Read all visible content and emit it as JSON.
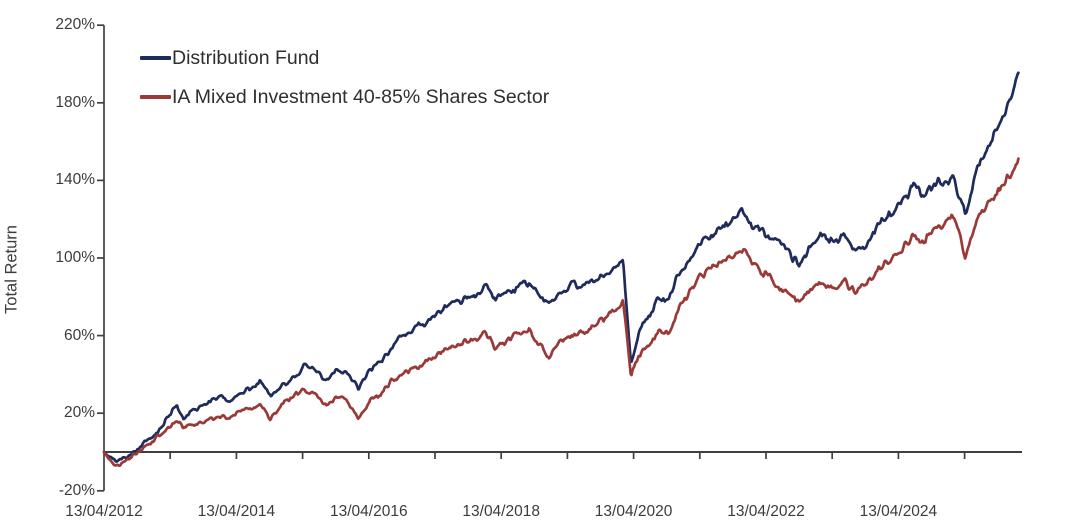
{
  "chart_data": {
    "type": "line",
    "title": "",
    "xlabel": "",
    "ylabel": "Total Return",
    "grid": false,
    "legend_position": "top-left-inside",
    "background_color": "#ffffff",
    "axis_color": "#3f3f3f",
    "text_color": "#3c3c3c",
    "y_domain": [
      -20,
      220
    ],
    "y_tick_values": [
      220,
      180,
      140,
      100,
      60,
      20,
      -20
    ],
    "y_tick_labels": [
      "220%",
      "180%",
      "140%",
      "100%",
      "60%",
      "20%",
      "-20%"
    ],
    "x_domain_years": [
      2012.28,
      2026.1
    ],
    "x_minor_tick_years": [
      2013.28,
      2014.28,
      2015.28,
      2016.28,
      2017.28,
      2018.28,
      2019.28,
      2020.28,
      2021.28,
      2022.28,
      2023.28,
      2024.28,
      2025.28
    ],
    "x_label_years": [
      2012.28,
      2014.28,
      2016.28,
      2018.28,
      2020.28,
      2022.28,
      2024.28
    ],
    "x_tick_labels": [
      "13/04/2012",
      "13/04/2014",
      "13/04/2016",
      "13/04/2018",
      "13/04/2020",
      "13/04/2022",
      "13/04/2024"
    ],
    "series": [
      {
        "name": "Distribution Fund",
        "color": "#1F2C5B",
        "points": [
          [
            2012.28,
            0
          ],
          [
            2012.36,
            -2.5
          ],
          [
            2012.46,
            -4.8
          ],
          [
            2012.6,
            -2.5
          ],
          [
            2012.72,
            -0.5
          ],
          [
            2012.82,
            3
          ],
          [
            2012.95,
            6.5
          ],
          [
            2013.1,
            11
          ],
          [
            2013.25,
            18
          ],
          [
            2013.38,
            24.5
          ],
          [
            2013.48,
            17.5
          ],
          [
            2013.6,
            21
          ],
          [
            2013.75,
            23.5
          ],
          [
            2013.9,
            26
          ],
          [
            2014.05,
            28
          ],
          [
            2014.18,
            26.5
          ],
          [
            2014.32,
            30.5
          ],
          [
            2014.5,
            33
          ],
          [
            2014.64,
            35.5
          ],
          [
            2014.8,
            29.5
          ],
          [
            2014.95,
            34
          ],
          [
            2015.1,
            37
          ],
          [
            2015.3,
            44
          ],
          [
            2015.45,
            42
          ],
          [
            2015.64,
            37
          ],
          [
            2015.8,
            41.5
          ],
          [
            2015.95,
            40
          ],
          [
            2016.12,
            33.5
          ],
          [
            2016.3,
            42
          ],
          [
            2016.45,
            45.5
          ],
          [
            2016.6,
            52
          ],
          [
            2016.76,
            60
          ],
          [
            2016.92,
            63
          ],
          [
            2017.1,
            66
          ],
          [
            2017.3,
            70.5
          ],
          [
            2017.52,
            76
          ],
          [
            2017.72,
            78.5
          ],
          [
            2017.9,
            81.5
          ],
          [
            2018.05,
            85.5
          ],
          [
            2018.18,
            78
          ],
          [
            2018.36,
            81.5
          ],
          [
            2018.55,
            85
          ],
          [
            2018.7,
            87.5
          ],
          [
            2018.86,
            81
          ],
          [
            2019.0,
            77
          ],
          [
            2019.16,
            83
          ],
          [
            2019.36,
            86.5
          ],
          [
            2019.56,
            87
          ],
          [
            2019.76,
            89
          ],
          [
            2019.96,
            93
          ],
          [
            2020.12,
            100
          ],
          [
            2020.24,
            45
          ],
          [
            2020.36,
            62
          ],
          [
            2020.52,
            70
          ],
          [
            2020.66,
            80
          ],
          [
            2020.8,
            78
          ],
          [
            2020.92,
            88
          ],
          [
            2021.06,
            96
          ],
          [
            2021.28,
            107
          ],
          [
            2021.5,
            112
          ],
          [
            2021.72,
            118
          ],
          [
            2021.9,
            124
          ],
          [
            2022.06,
            118
          ],
          [
            2022.22,
            113
          ],
          [
            2022.4,
            111
          ],
          [
            2022.56,
            105
          ],
          [
            2022.78,
            96
          ],
          [
            2022.96,
            106
          ],
          [
            2023.12,
            112
          ],
          [
            2023.3,
            108
          ],
          [
            2023.46,
            112
          ],
          [
            2023.63,
            103
          ],
          [
            2023.8,
            108
          ],
          [
            2023.96,
            116
          ],
          [
            2024.12,
            121
          ],
          [
            2024.3,
            127
          ],
          [
            2024.5,
            136
          ],
          [
            2024.66,
            133
          ],
          [
            2024.82,
            139
          ],
          [
            2024.96,
            138
          ],
          [
            2025.1,
            141
          ],
          [
            2025.22,
            131
          ],
          [
            2025.29,
            122
          ],
          [
            2025.42,
            141
          ],
          [
            2025.58,
            154
          ],
          [
            2025.72,
            164
          ],
          [
            2025.88,
            174
          ],
          [
            2026.0,
            184
          ],
          [
            2026.1,
            195
          ]
        ]
      },
      {
        "name": "IA Mixed Investment 40-85% Shares Sector",
        "color": "#9A3A38",
        "points": [
          [
            2012.28,
            0
          ],
          [
            2012.36,
            -4
          ],
          [
            2012.46,
            -7
          ],
          [
            2012.6,
            -5
          ],
          [
            2012.72,
            -2
          ],
          [
            2012.82,
            1
          ],
          [
            2012.95,
            4
          ],
          [
            2013.1,
            8
          ],
          [
            2013.25,
            13
          ],
          [
            2013.38,
            16.5
          ],
          [
            2013.48,
            11.5
          ],
          [
            2013.6,
            14
          ],
          [
            2013.75,
            15.5
          ],
          [
            2013.9,
            17.5
          ],
          [
            2014.05,
            19
          ],
          [
            2014.18,
            16.5
          ],
          [
            2014.32,
            20.5
          ],
          [
            2014.5,
            23
          ],
          [
            2014.64,
            24.5
          ],
          [
            2014.8,
            17.5
          ],
          [
            2014.95,
            23.5
          ],
          [
            2015.1,
            27.5
          ],
          [
            2015.3,
            32.5
          ],
          [
            2015.45,
            30
          ],
          [
            2015.64,
            23.5
          ],
          [
            2015.8,
            28
          ],
          [
            2015.95,
            26.5
          ],
          [
            2016.12,
            18
          ],
          [
            2016.3,
            26
          ],
          [
            2016.45,
            29.5
          ],
          [
            2016.6,
            36
          ],
          [
            2016.76,
            40
          ],
          [
            2016.92,
            42.5
          ],
          [
            2017.1,
            45.5
          ],
          [
            2017.3,
            50
          ],
          [
            2017.52,
            54.5
          ],
          [
            2017.72,
            56.5
          ],
          [
            2017.9,
            59
          ],
          [
            2018.05,
            62
          ],
          [
            2018.18,
            54.5
          ],
          [
            2018.36,
            57.5
          ],
          [
            2018.55,
            61
          ],
          [
            2018.7,
            63.5
          ],
          [
            2018.86,
            55.5
          ],
          [
            2019.0,
            49.5
          ],
          [
            2019.16,
            56
          ],
          [
            2019.36,
            60
          ],
          [
            2019.56,
            62.5
          ],
          [
            2019.76,
            67
          ],
          [
            2019.96,
            72.5
          ],
          [
            2020.12,
            78
          ],
          [
            2020.24,
            38.5
          ],
          [
            2020.36,
            50
          ],
          [
            2020.52,
            55
          ],
          [
            2020.66,
            62
          ],
          [
            2020.8,
            60
          ],
          [
            2020.92,
            70
          ],
          [
            2021.06,
            80
          ],
          [
            2021.28,
            91
          ],
          [
            2021.5,
            95
          ],
          [
            2021.72,
            99.5
          ],
          [
            2021.94,
            104
          ],
          [
            2022.06,
            98
          ],
          [
            2022.22,
            93
          ],
          [
            2022.4,
            88
          ],
          [
            2022.56,
            83
          ],
          [
            2022.78,
            76
          ],
          [
            2022.96,
            84
          ],
          [
            2023.12,
            87.5
          ],
          [
            2023.3,
            85
          ],
          [
            2023.46,
            88.5
          ],
          [
            2023.63,
            82
          ],
          [
            2023.8,
            87
          ],
          [
            2023.96,
            94
          ],
          [
            2024.12,
            98
          ],
          [
            2024.3,
            104
          ],
          [
            2024.5,
            111
          ],
          [
            2024.66,
            109
          ],
          [
            2024.82,
            114
          ],
          [
            2024.96,
            117
          ],
          [
            2025.1,
            122
          ],
          [
            2025.22,
            110
          ],
          [
            2025.29,
            100
          ],
          [
            2025.42,
            116
          ],
          [
            2025.58,
            125
          ],
          [
            2025.72,
            132
          ],
          [
            2025.88,
            139
          ],
          [
            2026.0,
            145
          ],
          [
            2026.1,
            152
          ]
        ]
      }
    ]
  }
}
